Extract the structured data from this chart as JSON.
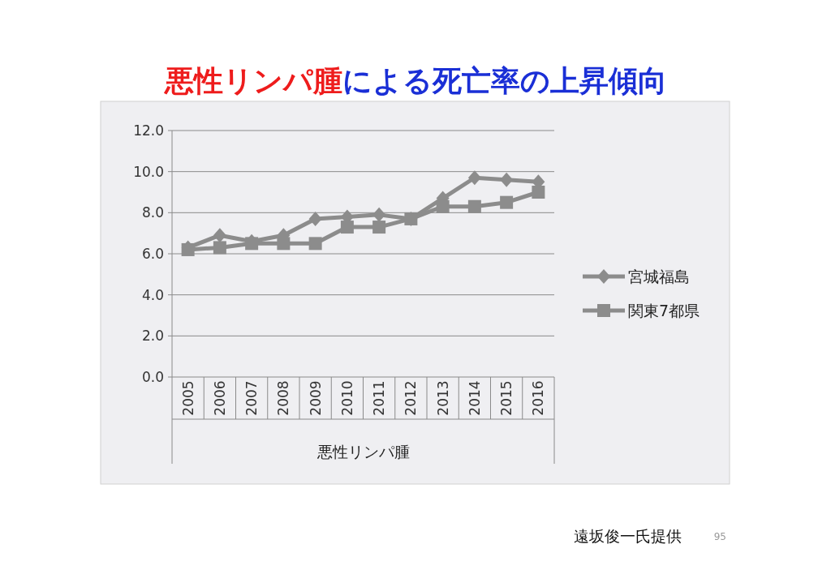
{
  "chart_data": {
    "type": "line",
    "title": "悪性リンパ腫による死亡率の上昇傾向",
    "xlabel": "悪性リンパ腫",
    "categories": [
      "2005",
      "2006",
      "2007",
      "2008",
      "2009",
      "2010",
      "2011",
      "2012",
      "2013",
      "2014",
      "2015",
      "2016"
    ],
    "series": [
      {
        "name": "宮城福島",
        "color": "#8c8c8c",
        "marker": "diamond",
        "values": [
          6.3,
          6.9,
          6.6,
          6.9,
          7.7,
          7.8,
          7.9,
          7.7,
          8.7,
          9.7,
          9.6,
          9.5
        ]
      },
      {
        "name": "関東7都県",
        "color": "#8c8c8c",
        "marker": "square",
        "values": [
          6.2,
          6.3,
          6.5,
          6.5,
          6.5,
          7.3,
          7.3,
          7.7,
          8.3,
          8.3,
          8.5,
          9.0
        ]
      }
    ],
    "ylim": [
      0,
      12
    ],
    "yticks": [
      {
        "value": 0,
        "label": "0.0"
      },
      {
        "value": 2,
        "label": "2.0"
      },
      {
        "value": 4,
        "label": "4.0"
      },
      {
        "value": 6,
        "label": "6.0"
      },
      {
        "value": 8,
        "label": "8.0"
      },
      {
        "value": 10,
        "label": "10.0"
      },
      {
        "value": 12,
        "label": "12.0"
      }
    ],
    "grid": "y",
    "legend": "right",
    "annotations": [
      "遠坂俊一氏提供",
      "95"
    ]
  }
}
